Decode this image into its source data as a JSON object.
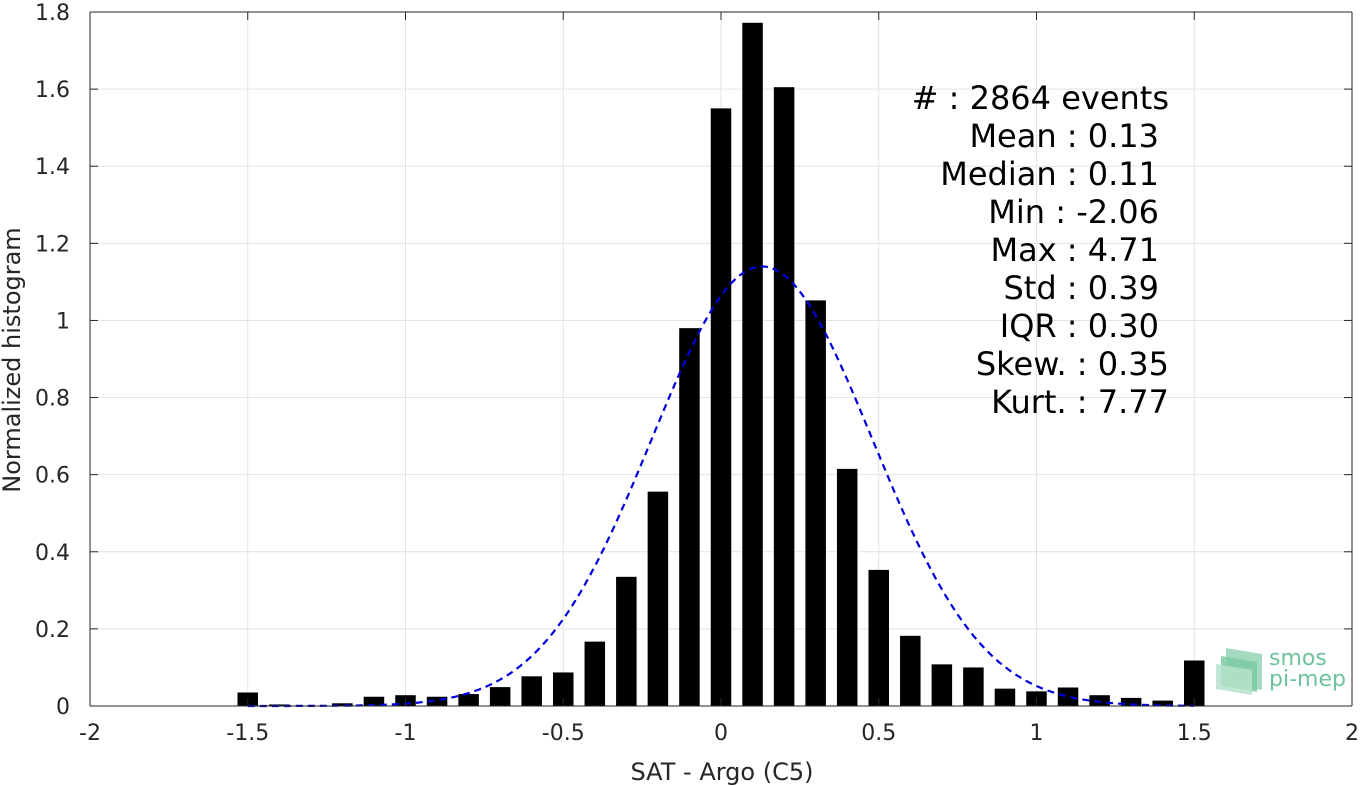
{
  "chart_data": {
    "type": "bar",
    "xlabel": "SAT - Argo (C5)",
    "ylabel": "Normalized histogram",
    "xlim": [
      -2,
      2
    ],
    "ylim": [
      0,
      1.8
    ],
    "grid": true,
    "bar_width": 0.065,
    "x": [
      -1.5,
      -1.4,
      -1.3,
      -1.2,
      -1.1,
      -1.0,
      -0.9,
      -0.8,
      -0.7,
      -0.6,
      -0.5,
      -0.4,
      -0.3,
      -0.2,
      -0.1,
      0.0,
      0.1,
      0.2,
      0.3,
      0.4,
      0.5,
      0.6,
      0.7,
      0.8,
      0.9,
      1.0,
      1.1,
      1.2,
      1.3,
      1.4,
      1.5
    ],
    "values": [
      0.035,
      0.004,
      0.0,
      0.007,
      0.024,
      0.028,
      0.024,
      0.031,
      0.049,
      0.077,
      0.087,
      0.167,
      0.335,
      0.556,
      0.98,
      1.55,
      1.772,
      1.605,
      1.052,
      0.615,
      0.353,
      0.182,
      0.108,
      0.1,
      0.045,
      0.038,
      0.048,
      0.028,
      0.021,
      0.014,
      0.118
    ],
    "bar_color": "#000000",
    "fit": {
      "type": "gaussian",
      "mean": 0.13,
      "std": 0.35,
      "peak": 1.14,
      "color": "#0000dd",
      "style": "dashed"
    },
    "xticks": [
      "-2",
      "-1.5",
      "-1",
      "-0.5",
      "0",
      "0.5",
      "1",
      "1.5",
      "2"
    ],
    "xtick_values": [
      -2,
      -1.5,
      -1,
      -0.5,
      0,
      0.5,
      1,
      1.5,
      2
    ],
    "yticks": [
      "0",
      "0.2",
      "0.4",
      "0.6",
      "0.8",
      "1",
      "1.2",
      "1.4",
      "1.6",
      "1.8"
    ],
    "ytick_values": [
      0,
      0.2,
      0.4,
      0.6,
      0.8,
      1.0,
      1.2,
      1.4,
      1.6,
      1.8
    ]
  },
  "stats": [
    "#  : 2864 events",
    "Mean : 0.13",
    "Median : 0.11",
    "Min : -2.06",
    "Max : 4.71",
    "Std : 0.39",
    "IQR : 0.30",
    "Skew. : 0.35",
    "Kurt. : 7.77"
  ],
  "logo": {
    "line1": "smos",
    "line2": "pi-mep",
    "color": "#6cc49a"
  }
}
